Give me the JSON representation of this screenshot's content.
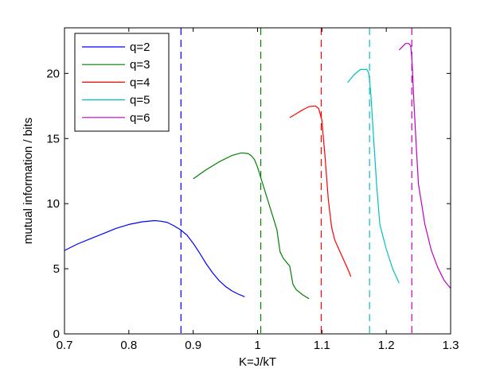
{
  "chart_data": {
    "type": "line",
    "title": "",
    "xlabel": "K=J/kT",
    "ylabel": "mutual information / bits",
    "xlim": [
      0.7,
      1.3
    ],
    "ylim": [
      0,
      23.5
    ],
    "xticks": [
      0.7,
      0.8,
      0.9,
      1.0,
      1.1,
      1.2,
      1.3
    ],
    "xtick_labels": [
      "0.7",
      "0.8",
      "0.9",
      "1",
      "1.1",
      "1.2",
      "1.3"
    ],
    "yticks": [
      0,
      5,
      10,
      15,
      20
    ],
    "ytick_labels": [
      "0",
      "5",
      "10",
      "15",
      "20"
    ],
    "grid": false,
    "legend_position": "top-left",
    "series": [
      {
        "name": "q=2",
        "color": "#0000ff",
        "critical_K": 0.881,
        "x": [
          0.7,
          0.72,
          0.74,
          0.76,
          0.78,
          0.8,
          0.82,
          0.84,
          0.85,
          0.86,
          0.87,
          0.88,
          0.89,
          0.9,
          0.91,
          0.92,
          0.93,
          0.94,
          0.95,
          0.96,
          0.97,
          0.98
        ],
        "values": [
          6.4,
          6.9,
          7.3,
          7.7,
          8.1,
          8.4,
          8.6,
          8.7,
          8.65,
          8.55,
          8.3,
          8.0,
          7.6,
          6.95,
          6.2,
          5.4,
          4.7,
          4.1,
          3.65,
          3.3,
          3.05,
          2.85
        ]
      },
      {
        "name": "q=3",
        "color": "#008000",
        "critical_K": 1.005,
        "x": [
          0.9,
          0.92,
          0.94,
          0.96,
          0.975,
          0.985,
          0.99,
          0.995,
          1.0,
          1.01,
          1.02,
          1.03,
          1.035,
          1.04,
          1.05,
          1.055,
          1.06,
          1.07,
          1.08
        ],
        "values": [
          11.9,
          12.6,
          13.2,
          13.7,
          13.9,
          13.85,
          13.7,
          13.4,
          12.8,
          11.2,
          9.6,
          8.0,
          6.3,
          5.8,
          5.2,
          3.8,
          3.4,
          3.0,
          2.7
        ]
      },
      {
        "name": "q=4",
        "color": "#ff0000",
        "critical_K": 1.099,
        "x": [
          1.05,
          1.06,
          1.07,
          1.08,
          1.09,
          1.095,
          1.1,
          1.105,
          1.11,
          1.115,
          1.12,
          1.13,
          1.14,
          1.145
        ],
        "values": [
          16.6,
          16.9,
          17.2,
          17.45,
          17.5,
          17.3,
          16.4,
          13.5,
          10.3,
          8.2,
          7.2,
          6.1,
          5.0,
          4.4
        ]
      },
      {
        "name": "q=5",
        "color": "#00bfbf",
        "critical_K": 1.174,
        "x": [
          1.14,
          1.15,
          1.16,
          1.17,
          1.173,
          1.176,
          1.18,
          1.185,
          1.19,
          1.2,
          1.21,
          1.22
        ],
        "values": [
          19.3,
          19.9,
          20.3,
          20.3,
          20.0,
          18.4,
          15.3,
          11.5,
          8.4,
          6.5,
          5.0,
          3.9
        ]
      },
      {
        "name": "q=6",
        "color": "#bf00bf",
        "critical_K": 1.2397,
        "x": [
          1.22,
          1.23,
          1.235,
          1.238,
          1.24,
          1.243,
          1.247,
          1.25,
          1.26,
          1.27,
          1.28,
          1.29,
          1.3
        ],
        "values": [
          21.8,
          22.3,
          22.3,
          22.1,
          21.0,
          17.8,
          14.0,
          11.5,
          8.4,
          6.4,
          5.1,
          4.1,
          3.5
        ]
      }
    ]
  }
}
